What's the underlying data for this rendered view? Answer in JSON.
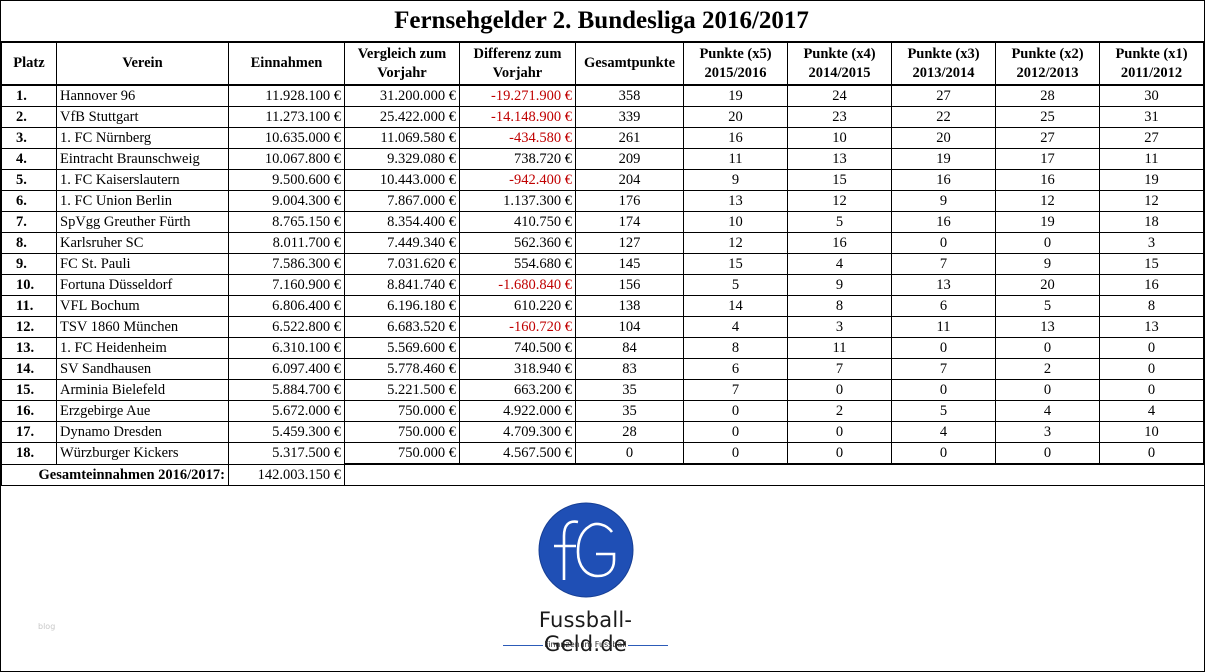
{
  "title": "Fernsehgelder 2. Bundesliga 2016/2017",
  "columns": [
    {
      "line1": "Platz",
      "line2": ""
    },
    {
      "line1": "Verein",
      "line2": ""
    },
    {
      "line1": "Einnahmen",
      "line2": ""
    },
    {
      "line1": "Vergleich zum",
      "line2": "Vorjahr"
    },
    {
      "line1": "Differenz zum",
      "line2": "Vorjahr"
    },
    {
      "line1": "Gesamtpunkte",
      "line2": ""
    },
    {
      "line1": "Punkte (x5)",
      "line2": "2015/2016"
    },
    {
      "line1": "Punkte (x4)",
      "line2": "2014/2015"
    },
    {
      "line1": "Punkte (x3)",
      "line2": "2013/2014"
    },
    {
      "line1": "Punkte (x2)",
      "line2": "2012/2013"
    },
    {
      "line1": "Punkte (x1)",
      "line2": "2011/2012"
    }
  ],
  "rows": [
    {
      "platz": "1.",
      "verein": "Hannover 96",
      "einnahmen": "11.928.100 €",
      "vorjahr": "31.200.000 €",
      "differenz": "-19.271.900 €",
      "negative": true,
      "gesamt": "358",
      "p5": "19",
      "p4": "24",
      "p3": "27",
      "p2": "28",
      "p1": "30"
    },
    {
      "platz": "2.",
      "verein": "VfB Stuttgart",
      "einnahmen": "11.273.100 €",
      "vorjahr": "25.422.000 €",
      "differenz": "-14.148.900 €",
      "negative": true,
      "gesamt": "339",
      "p5": "20",
      "p4": "23",
      "p3": "22",
      "p2": "25",
      "p1": "31"
    },
    {
      "platz": "3.",
      "verein": "1. FC Nürnberg",
      "einnahmen": "10.635.000 €",
      "vorjahr": "11.069.580 €",
      "differenz": "-434.580 €",
      "negative": true,
      "gesamt": "261",
      "p5": "16",
      "p4": "10",
      "p3": "20",
      "p2": "27",
      "p1": "27"
    },
    {
      "platz": "4.",
      "verein": "Eintracht Braunschweig",
      "einnahmen": "10.067.800 €",
      "vorjahr": "9.329.080 €",
      "differenz": "738.720 €",
      "negative": false,
      "gesamt": "209",
      "p5": "11",
      "p4": "13",
      "p3": "19",
      "p2": "17",
      "p1": "11"
    },
    {
      "platz": "5.",
      "verein": "1. FC Kaiserslautern",
      "einnahmen": "9.500.600 €",
      "vorjahr": "10.443.000 €",
      "differenz": "-942.400 €",
      "negative": true,
      "gesamt": "204",
      "p5": "9",
      "p4": "15",
      "p3": "16",
      "p2": "16",
      "p1": "19"
    },
    {
      "platz": "6.",
      "verein": "1. FC Union Berlin",
      "einnahmen": "9.004.300 €",
      "vorjahr": "7.867.000 €",
      "differenz": "1.137.300 €",
      "negative": false,
      "gesamt": "176",
      "p5": "13",
      "p4": "12",
      "p3": "9",
      "p2": "12",
      "p1": "12"
    },
    {
      "platz": "7.",
      "verein": "SpVgg Greuther Fürth",
      "einnahmen": "8.765.150 €",
      "vorjahr": "8.354.400 €",
      "differenz": "410.750 €",
      "negative": false,
      "gesamt": "174",
      "p5": "10",
      "p4": "5",
      "p3": "16",
      "p2": "19",
      "p1": "18"
    },
    {
      "platz": "8.",
      "verein": "Karlsruher SC",
      "einnahmen": "8.011.700 €",
      "vorjahr": "7.449.340 €",
      "differenz": "562.360 €",
      "negative": false,
      "gesamt": "127",
      "p5": "12",
      "p4": "16",
      "p3": "0",
      "p2": "0",
      "p1": "3"
    },
    {
      "platz": "9.",
      "verein": "FC St. Pauli",
      "einnahmen": "7.586.300 €",
      "vorjahr": "7.031.620 €",
      "differenz": "554.680 €",
      "negative": false,
      "gesamt": "145",
      "p5": "15",
      "p4": "4",
      "p3": "7",
      "p2": "9",
      "p1": "15"
    },
    {
      "platz": "10.",
      "verein": "Fortuna Düsseldorf",
      "einnahmen": "7.160.900 €",
      "vorjahr": "8.841.740 €",
      "differenz": "-1.680.840 €",
      "negative": true,
      "gesamt": "156",
      "p5": "5",
      "p4": "9",
      "p3": "13",
      "p2": "20",
      "p1": "16"
    },
    {
      "platz": "11.",
      "verein": "VFL Bochum",
      "einnahmen": "6.806.400 €",
      "vorjahr": "6.196.180 €",
      "differenz": "610.220 €",
      "negative": false,
      "gesamt": "138",
      "p5": "14",
      "p4": "8",
      "p3": "6",
      "p2": "5",
      "p1": "8"
    },
    {
      "platz": "12.",
      "verein": "TSV 1860 München",
      "einnahmen": "6.522.800 €",
      "vorjahr": "6.683.520 €",
      "differenz": "-160.720 €",
      "negative": true,
      "gesamt": "104",
      "p5": "4",
      "p4": "3",
      "p3": "11",
      "p2": "13",
      "p1": "13"
    },
    {
      "platz": "13.",
      "verein": "1. FC Heidenheim",
      "einnahmen": "6.310.100 €",
      "vorjahr": "5.569.600 €",
      "differenz": "740.500 €",
      "negative": false,
      "gesamt": "84",
      "p5": "8",
      "p4": "11",
      "p3": "0",
      "p2": "0",
      "p1": "0"
    },
    {
      "platz": "14.",
      "verein": "SV Sandhausen",
      "einnahmen": "6.097.400 €",
      "vorjahr": "5.778.460 €",
      "differenz": "318.940 €",
      "negative": false,
      "gesamt": "83",
      "p5": "6",
      "p4": "7",
      "p3": "7",
      "p2": "2",
      "p1": "0"
    },
    {
      "platz": "15.",
      "verein": "Arminia Bielefeld",
      "einnahmen": "5.884.700 €",
      "vorjahr": "5.221.500 €",
      "differenz": "663.200 €",
      "negative": false,
      "gesamt": "35",
      "p5": "7",
      "p4": "0",
      "p3": "0",
      "p2": "0",
      "p1": "0"
    },
    {
      "platz": "16.",
      "verein": "Erzgebirge Aue",
      "einnahmen": "5.672.000 €",
      "vorjahr": "750.000 €",
      "differenz": "4.922.000 €",
      "negative": false,
      "gesamt": "35",
      "p5": "0",
      "p4": "2",
      "p3": "5",
      "p2": "4",
      "p1": "4"
    },
    {
      "platz": "17.",
      "verein": "Dynamo Dresden",
      "einnahmen": "5.459.300 €",
      "vorjahr": "750.000 €",
      "differenz": "4.709.300 €",
      "negative": false,
      "gesamt": "28",
      "p5": "0",
      "p4": "0",
      "p3": "4",
      "p2": "3",
      "p1": "10"
    },
    {
      "platz": "18.",
      "verein": "Würzburger Kickers",
      "einnahmen": "5.317.500 €",
      "vorjahr": "750.000 €",
      "differenz": "4.567.500 €",
      "negative": false,
      "gesamt": "0",
      "p5": "0",
      "p4": "0",
      "p3": "0",
      "p2": "0",
      "p1": "0"
    }
  ],
  "total": {
    "label": "Gesamteinnahmen 2016/2017:",
    "value": "142.003.150 €"
  },
  "logo": {
    "name": "Fussball-Geld.de",
    "tagline": "Finanzen im Fussball",
    "icon": "fg-monogram-icon",
    "color": "#1f4fb5"
  },
  "watermark": "blog",
  "colors": {
    "negative": "#c00000"
  }
}
